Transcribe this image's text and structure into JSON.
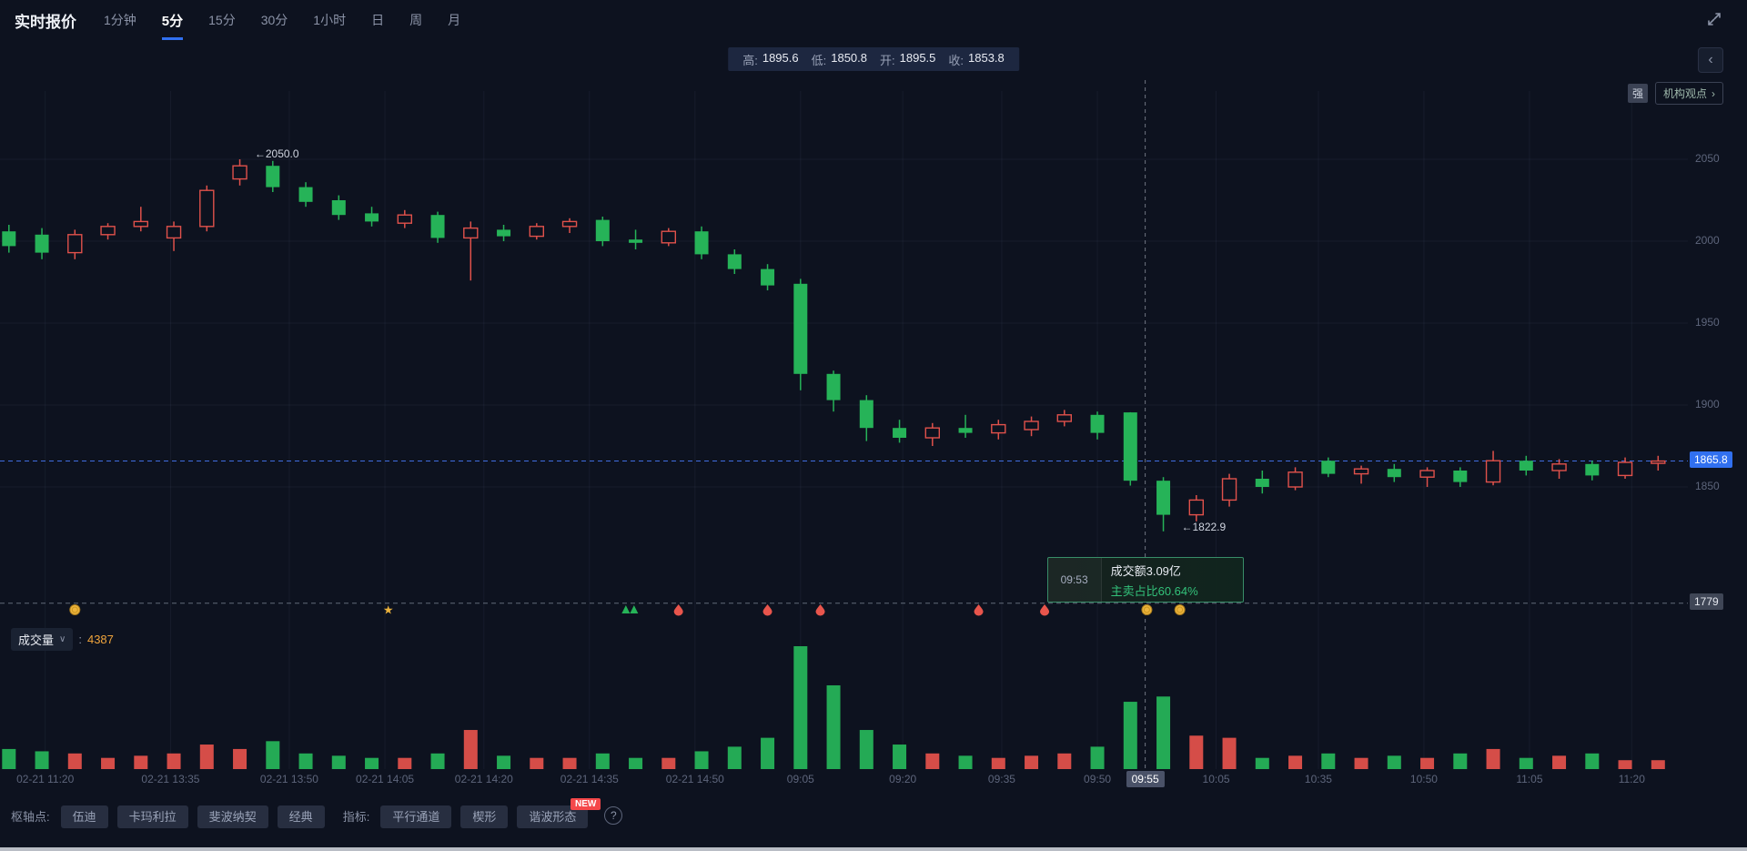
{
  "colors": {
    "bg": "#0d121f",
    "up_red": "#e0514b",
    "down_green": "#26b358",
    "accent_blue": "#3170f0",
    "orange": "#f0a43c",
    "grid": "rgba(140,155,195,0.08)",
    "axis_text": "#5d657b"
  },
  "topbar": {
    "title": "实时报价",
    "timeframes": [
      "1分钟",
      "5分",
      "15分",
      "30分",
      "1小时",
      "日",
      "周",
      "月"
    ],
    "active_timeframe": "5分"
  },
  "ohlc_bar": {
    "segments": [
      {
        "label": "高:",
        "value": "1895.6"
      },
      {
        "label": "低:",
        "value": "1850.8"
      },
      {
        "label": "开:",
        "value": "1895.5"
      },
      {
        "label": "收:",
        "value": "1853.8"
      }
    ]
  },
  "side_widgets": {
    "strength_badge": "强",
    "insight_label": "机构观点",
    "insight_arrow": "›"
  },
  "price_axis": {
    "gridline_labels": [
      "2050",
      "2000",
      "1950",
      "1900",
      "1850"
    ],
    "floor_label": "1779",
    "last_price_label": "1865.8"
  },
  "annotations": [
    {
      "text": "←2050.0",
      "i": 7.45,
      "price": 2053
    },
    {
      "text": "←1822.9",
      "i": 35.55,
      "price": 1825
    }
  ],
  "crosshair": {
    "i": 34.45,
    "time_label": "09:55"
  },
  "tooltip": {
    "time": "09:53",
    "line1": "成交额3.09亿",
    "line2": "主卖占比60.64%"
  },
  "volume_header": {
    "label": "成交量",
    "caret": "∨",
    "colon": ":",
    "value": "4387"
  },
  "x_axis": [
    {
      "i": 1.1,
      "text": "02-21 11:20"
    },
    {
      "i": 4.9,
      "text": "02-21 13:35"
    },
    {
      "i": 8.5,
      "text": "02-21 13:50"
    },
    {
      "i": 11.4,
      "text": "02-21 14:05"
    },
    {
      "i": 14.4,
      "text": "02-21 14:20"
    },
    {
      "i": 17.6,
      "text": "02-21 14:35"
    },
    {
      "i": 20.8,
      "text": "02-21 14:50"
    },
    {
      "i": 24.0,
      "text": "09:05"
    },
    {
      "i": 27.1,
      "text": "09:20"
    },
    {
      "i": 30.1,
      "text": "09:35"
    },
    {
      "i": 33.0,
      "text": "09:50"
    },
    {
      "i": 36.6,
      "text": "10:05"
    },
    {
      "i": 39.7,
      "text": "10:35"
    },
    {
      "i": 42.9,
      "text": "10:50"
    },
    {
      "i": 46.1,
      "text": "11:05"
    },
    {
      "i": 49.2,
      "text": "11:20"
    }
  ],
  "markers": [
    {
      "i": 2.0,
      "type": "coin"
    },
    {
      "i": 11.5,
      "type": "star"
    },
    {
      "i": 18.8,
      "type": "surge-green"
    },
    {
      "i": 20.3,
      "type": "fire"
    },
    {
      "i": 23.0,
      "type": "fire"
    },
    {
      "i": 24.6,
      "type": "fire"
    },
    {
      "i": 29.4,
      "type": "fire"
    },
    {
      "i": 31.4,
      "type": "fire"
    },
    {
      "i": 34.5,
      "type": "coin"
    },
    {
      "i": 35.5,
      "type": "coin"
    }
  ],
  "footer": {
    "pivot_label": "枢轴点:",
    "pivot_buttons": [
      "伍迪",
      "卡玛利拉",
      "斐波纳契",
      "经典"
    ],
    "indicator_label": "指标:",
    "indicator_buttons": [
      "平行通道",
      "楔形",
      "谐波形态"
    ],
    "new_badge": "NEW",
    "help": "?"
  },
  "chart_data": {
    "type": "candlestick+volume",
    "color_rule": "close >= open → red hollow (up, CN convention); close < open → green solid (down)",
    "price_gridlines": [
      2050,
      2000,
      1950,
      1900,
      1850
    ],
    "floor_price": 1779,
    "last_price": 1865.8,
    "ylim": [
      1779,
      2080
    ],
    "columns": [
      "open",
      "high",
      "low",
      "close",
      "volume"
    ],
    "candles": [
      [
        2006,
        2010,
        1993,
        1997,
        1310
      ],
      [
        2004,
        2008,
        1989,
        1993,
        1160
      ],
      [
        1993,
        2007,
        1989,
        2004,
        1020
      ],
      [
        2004,
        2011,
        2001,
        2009,
        730
      ],
      [
        2009,
        2021,
        2006,
        2012,
        870
      ],
      [
        2002,
        2012,
        1994,
        2009,
        1020
      ],
      [
        2009,
        2034,
        2006,
        2031,
        1600
      ],
      [
        2038,
        2050,
        2034,
        2046,
        1310
      ],
      [
        2046,
        2049,
        2030,
        2033,
        1820
      ],
      [
        2033,
        2036,
        2021,
        2024,
        1020
      ],
      [
        2025,
        2028,
        2013,
        2016,
        870
      ],
      [
        2017,
        2021,
        2009,
        2012,
        730
      ],
      [
        2011,
        2019,
        2008,
        2016,
        730
      ],
      [
        2016,
        2018,
        1999,
        2002,
        1020
      ],
      [
        2002,
        2012,
        1976,
        2008,
        2550
      ],
      [
        2007,
        2010,
        2000,
        2003,
        870
      ],
      [
        2003,
        2011,
        2001,
        2009,
        730
      ],
      [
        2009,
        2014,
        2005,
        2012,
        730
      ],
      [
        2013,
        2015,
        1997,
        2000,
        1020
      ],
      [
        2001,
        2007,
        1995,
        1999,
        730
      ],
      [
        1999,
        2008,
        1997,
        2006,
        730
      ],
      [
        2006,
        2009,
        1989,
        1992,
        1160
      ],
      [
        1992,
        1995,
        1980,
        1983,
        1460
      ],
      [
        1983,
        1986,
        1970,
        1973,
        2040
      ],
      [
        1974,
        1977,
        1909,
        1919,
        8010
      ],
      [
        1919,
        1921,
        1896,
        1903,
        5460
      ],
      [
        1903,
        1906,
        1878,
        1886,
        2550
      ],
      [
        1886,
        1891,
        1877,
        1880,
        1600
      ],
      [
        1880,
        1889,
        1875,
        1886,
        1020
      ],
      [
        1886,
        1894,
        1880,
        1883,
        870
      ],
      [
        1883,
        1891,
        1879,
        1888,
        730
      ],
      [
        1885,
        1893,
        1881,
        1890,
        870
      ],
      [
        1890,
        1897,
        1887,
        1894,
        1020
      ],
      [
        1894,
        1896,
        1879,
        1883,
        1460
      ],
      [
        1895.5,
        1895.6,
        1850.8,
        1853.8,
        4387
      ],
      [
        1853.8,
        1856,
        1822.9,
        1833,
        4730
      ],
      [
        1833,
        1845,
        1829,
        1842,
        2180
      ],
      [
        1842,
        1858,
        1838,
        1855,
        2040
      ],
      [
        1855,
        1860,
        1846,
        1850,
        730
      ],
      [
        1850,
        1862,
        1848,
        1859,
        870
      ],
      [
        1866,
        1868,
        1856,
        1858,
        1020
      ],
      [
        1858,
        1863,
        1852,
        1861,
        730
      ],
      [
        1861,
        1864,
        1853,
        1856,
        870
      ],
      [
        1856,
        1862,
        1850,
        1860,
        730
      ],
      [
        1860,
        1862,
        1850,
        1853,
        1020
      ],
      [
        1853,
        1872,
        1851,
        1866,
        1310
      ],
      [
        1866,
        1869,
        1857,
        1860,
        730
      ],
      [
        1860,
        1867,
        1855,
        1864,
        870
      ],
      [
        1864,
        1866,
        1854,
        1857,
        1020
      ],
      [
        1857,
        1868,
        1855,
        1865,
        580
      ],
      [
        1865,
        1869,
        1860,
        1865.8,
        580
      ]
    ]
  }
}
